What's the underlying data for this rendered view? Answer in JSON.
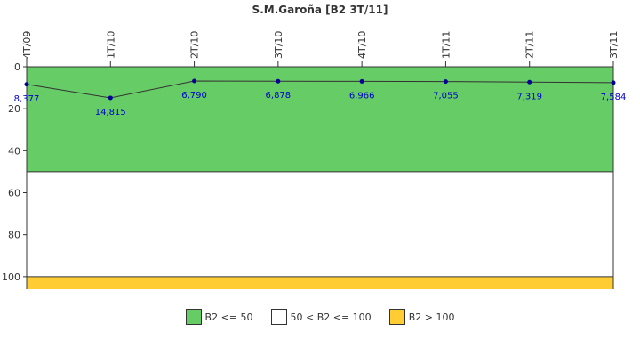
{
  "chart_data": {
    "type": "line",
    "title": "S.M.Garoña [B2 3T/11]",
    "categories": [
      "4T/09",
      "1T/10",
      "2T/10",
      "3T/10",
      "4T/10",
      "1T/11",
      "2T/11",
      "3T/11"
    ],
    "values": [
      8.377,
      14.815,
      6.79,
      6.878,
      6.966,
      7.055,
      7.319,
      7.584
    ],
    "value_labels": [
      "8,377",
      "14,815",
      "6,790",
      "6,878",
      "6,966",
      "7,055",
      "7,319",
      "7,584"
    ],
    "y_ticks": [
      0,
      20,
      40,
      60,
      80,
      100
    ],
    "ylim": [
      0,
      106
    ],
    "y_inverted": true,
    "bands": [
      {
        "from": 0,
        "to": 50,
        "color": "#66cc66"
      },
      {
        "from": 50,
        "to": 100,
        "color": "#ffffff"
      },
      {
        "from": 100,
        "to": 106,
        "color": "#ffcc33"
      }
    ],
    "line_color": "#333333",
    "marker_color": "#000099",
    "legend_position": "bottom",
    "legend": [
      {
        "label": "B2 <= 50",
        "color": "#66cc66"
      },
      {
        "label": "50 < B2 <= 100",
        "color": "#ffffff"
      },
      {
        "label": "B2 > 100",
        "color": "#ffcc33"
      }
    ]
  }
}
